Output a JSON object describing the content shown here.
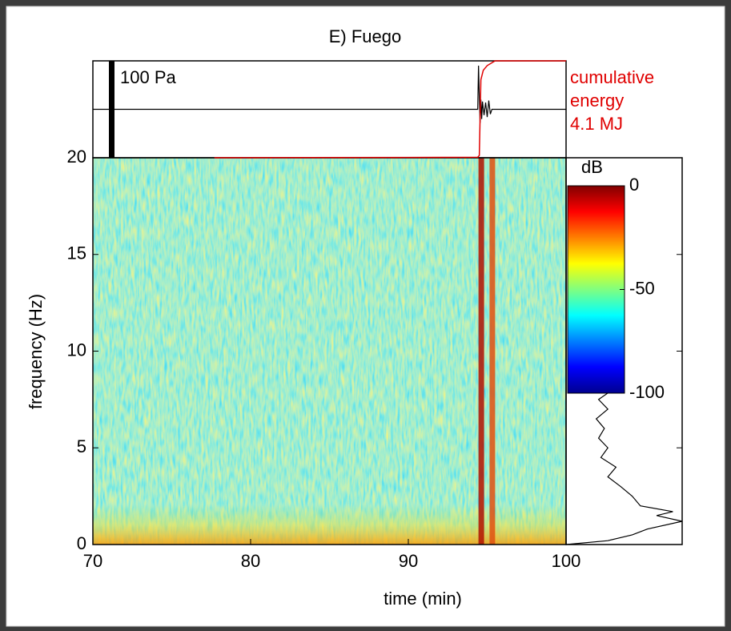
{
  "chart_data": {
    "type": "spectrogram",
    "title": "E) Fuego",
    "xlabel": "time (min)",
    "ylabel": "frequency (Hz)",
    "xlim": [
      70,
      100
    ],
    "ylim": [
      0,
      20
    ],
    "xticks": [
      70,
      80,
      90,
      100
    ],
    "yticks": [
      0,
      5,
      10,
      15,
      20
    ],
    "event_times": [
      94.6,
      95.3
    ],
    "colorbar": {
      "label": "dB",
      "lim": [
        -100,
        0
      ],
      "ticks": [
        0,
        -50,
        -100
      ]
    },
    "waveform": {
      "scale_label": "100 Pa",
      "scale_value": 100,
      "color": "#000000",
      "ylim": [
        -50,
        50
      ],
      "x": [
        70,
        94.4,
        94.45,
        94.5,
        94.55,
        94.6,
        94.65,
        94.7,
        94.8,
        94.9,
        95.0,
        95.1,
        95.2,
        95.3,
        100
      ],
      "values": [
        0,
        0,
        45,
        12,
        -14,
        10,
        -10,
        8,
        -6,
        7,
        -8,
        9,
        -5,
        0,
        0
      ]
    },
    "cumulative_energy": {
      "label": [
        "cumulative",
        "energy",
        "4.1 MJ"
      ],
      "color": "#e00000",
      "ylim": [
        0,
        4.1
      ],
      "x": [
        77.7,
        94.4,
        94.5,
        94.6,
        94.75,
        95.0,
        95.5,
        100
      ],
      "values": [
        0,
        0.02,
        0.1,
        3.3,
        3.7,
        3.9,
        4.1,
        4.1
      ]
    },
    "spectrum": {
      "color": "#000000",
      "xlim": [
        0,
        100
      ],
      "frequency": [
        0,
        0.2,
        0.5,
        0.8,
        1.2,
        1.5,
        1.7,
        2,
        2.5,
        3,
        3.5,
        4,
        4.5,
        5,
        5.5,
        6,
        6.5,
        7,
        7.5,
        8
      ],
      "values": [
        0,
        36,
        57,
        70,
        100,
        78,
        92,
        64,
        57,
        47,
        36,
        43,
        30,
        36,
        28,
        33,
        26,
        36,
        28,
        40
      ]
    }
  }
}
